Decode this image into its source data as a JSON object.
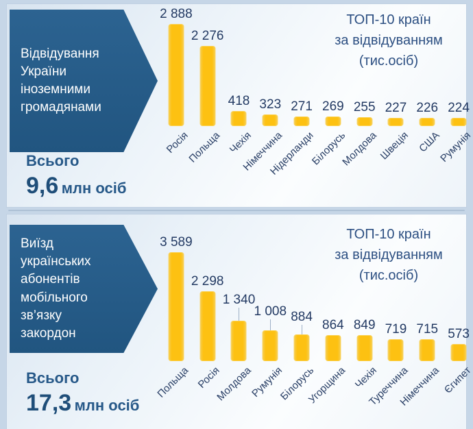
{
  "colors": {
    "background": "#c6d6e7",
    "panel_gradient_start": "#d8e4f0",
    "panel_gradient_end": "#fbfdfe",
    "arrow_blue": "#215580",
    "bar_yellow": "#fdc112",
    "value_text": "#233a63",
    "title_text": "#2c4f82",
    "total_text": "#1f4e79",
    "divider": "#aec1d5"
  },
  "chart_data": [
    {
      "type": "bar",
      "panel_label": "Відвідування України іноземними громадянами",
      "panel_label_lines": [
        "Відвідування",
        "України",
        "іноземними",
        "громадянами"
      ],
      "title": "ТОП-10 країн за відвідуванням (тис.осіб)",
      "title_lines": [
        "ТОП-10 країн",
        "за відвідуванням",
        "(тис.осіб)"
      ],
      "units": "тис.осіб",
      "categories": [
        "Росія",
        "Польща",
        "Чехія",
        "Німеччина",
        "Нідерланди",
        "Білорусь",
        "Молдова",
        "Швеція",
        "США",
        "Румунія"
      ],
      "values": [
        2888,
        2276,
        418,
        323,
        271,
        269,
        255,
        227,
        226,
        224
      ],
      "value_labels": [
        "2 888",
        "2 276",
        "418",
        "323",
        "271",
        "269",
        "255",
        "227",
        "226",
        "224"
      ],
      "total_label": "Всього",
      "total_value": "9,6",
      "total_unit": "млн осіб",
      "ylim": [
        0,
        2888
      ],
      "grid": false,
      "legend": "none",
      "category_label_rotation": 45
    },
    {
      "type": "bar",
      "panel_label": "Виїзд українських абонентів мобільного зв’язку закордон",
      "panel_label_lines": [
        "Виїзд",
        "українських",
        "абонентів",
        "мобільного",
        "зв’язку",
        "закордон"
      ],
      "title": "ТОП-10 країн за відвідуванням (тис.осіб)",
      "title_lines": [
        "ТОП-10 країн",
        "за відвідуванням",
        "(тис.осіб)"
      ],
      "units": "тис.осіб",
      "categories": [
        "Польща",
        "Росія",
        "Молдова",
        "Румунія",
        "Білорусь",
        "Угорщина",
        "Чехія",
        "Туреччина",
        "Німеччина",
        "Єгипет"
      ],
      "values": [
        3589,
        2298,
        1340,
        1008,
        884,
        864,
        849,
        719,
        715,
        573
      ],
      "value_labels": [
        "3 589",
        "2 298",
        "1 340",
        "1 008",
        "884",
        "864",
        "849",
        "719",
        "715",
        "573"
      ],
      "total_label": "Всього",
      "total_value": "17,3",
      "total_unit": "млн осіб",
      "ylim": [
        0,
        3589
      ],
      "grid": false,
      "legend": "none",
      "category_label_rotation": 45
    }
  ]
}
